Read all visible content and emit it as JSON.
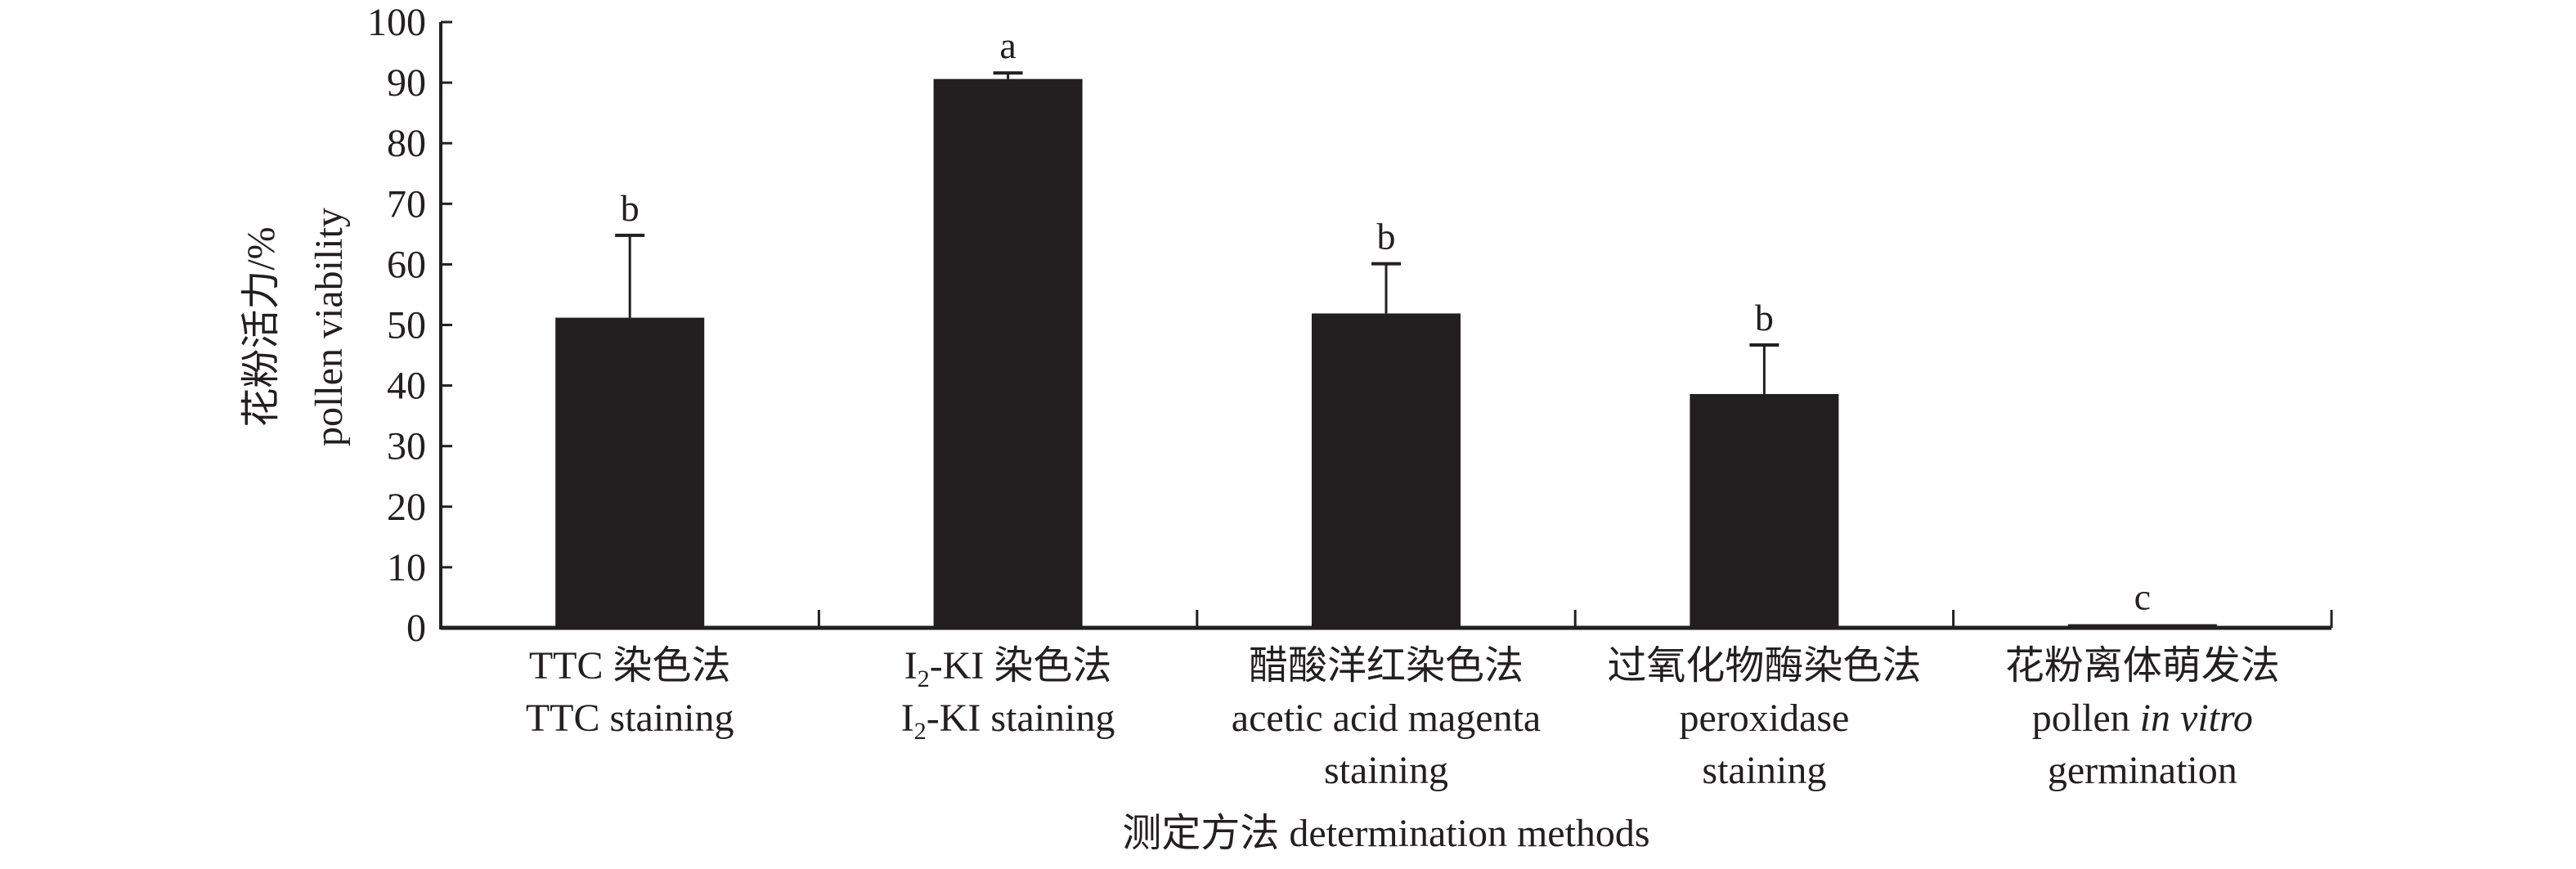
{
  "chart_data": {
    "type": "bar",
    "title": "",
    "ylabel_lines": [
      "花粉活力/%",
      "pollen viability"
    ],
    "xlabel": "测定方法 determination methods",
    "ylim": [
      0,
      100
    ],
    "yticks": [
      0,
      10,
      20,
      30,
      40,
      50,
      60,
      70,
      80,
      90,
      100
    ],
    "grid": false,
    "bar_color": "#231f20",
    "categories": [
      {
        "lines": [
          [
            {
              "t": "TTC 染色法"
            }
          ],
          [
            {
              "t": "TTC staining"
            }
          ]
        ]
      },
      {
        "lines": [
          [
            {
              "t": "I"
            },
            {
              "t": "2",
              "sub": true
            },
            {
              "t": "-KI 染色法"
            }
          ],
          [
            {
              "t": "I"
            },
            {
              "t": "2",
              "sub": true
            },
            {
              "t": "-KI staining"
            }
          ]
        ]
      },
      {
        "lines": [
          [
            {
              "t": "醋酸洋红染色法"
            }
          ],
          [
            {
              "t": "acetic acid magenta"
            }
          ],
          [
            {
              "t": "staining"
            }
          ]
        ]
      },
      {
        "lines": [
          [
            {
              "t": "过氧化物酶染色法"
            }
          ],
          [
            {
              "t": "peroxidase"
            }
          ],
          [
            {
              "t": "staining"
            }
          ]
        ]
      },
      {
        "lines": [
          [
            {
              "t": "花粉离体萌发法"
            }
          ],
          [
            {
              "t": "pollen "
            },
            {
              "t": "in vitro",
              "italic": true
            }
          ],
          [
            {
              "t": "germination"
            }
          ]
        ]
      }
    ],
    "values": [
      51.2,
      90.6,
      51.9,
      38.6,
      0.6
    ],
    "error_upper": [
      64.8,
      91.6,
      60.1,
      46.7,
      null
    ],
    "significance": [
      "b",
      "a",
      "b",
      "b",
      "c"
    ]
  }
}
